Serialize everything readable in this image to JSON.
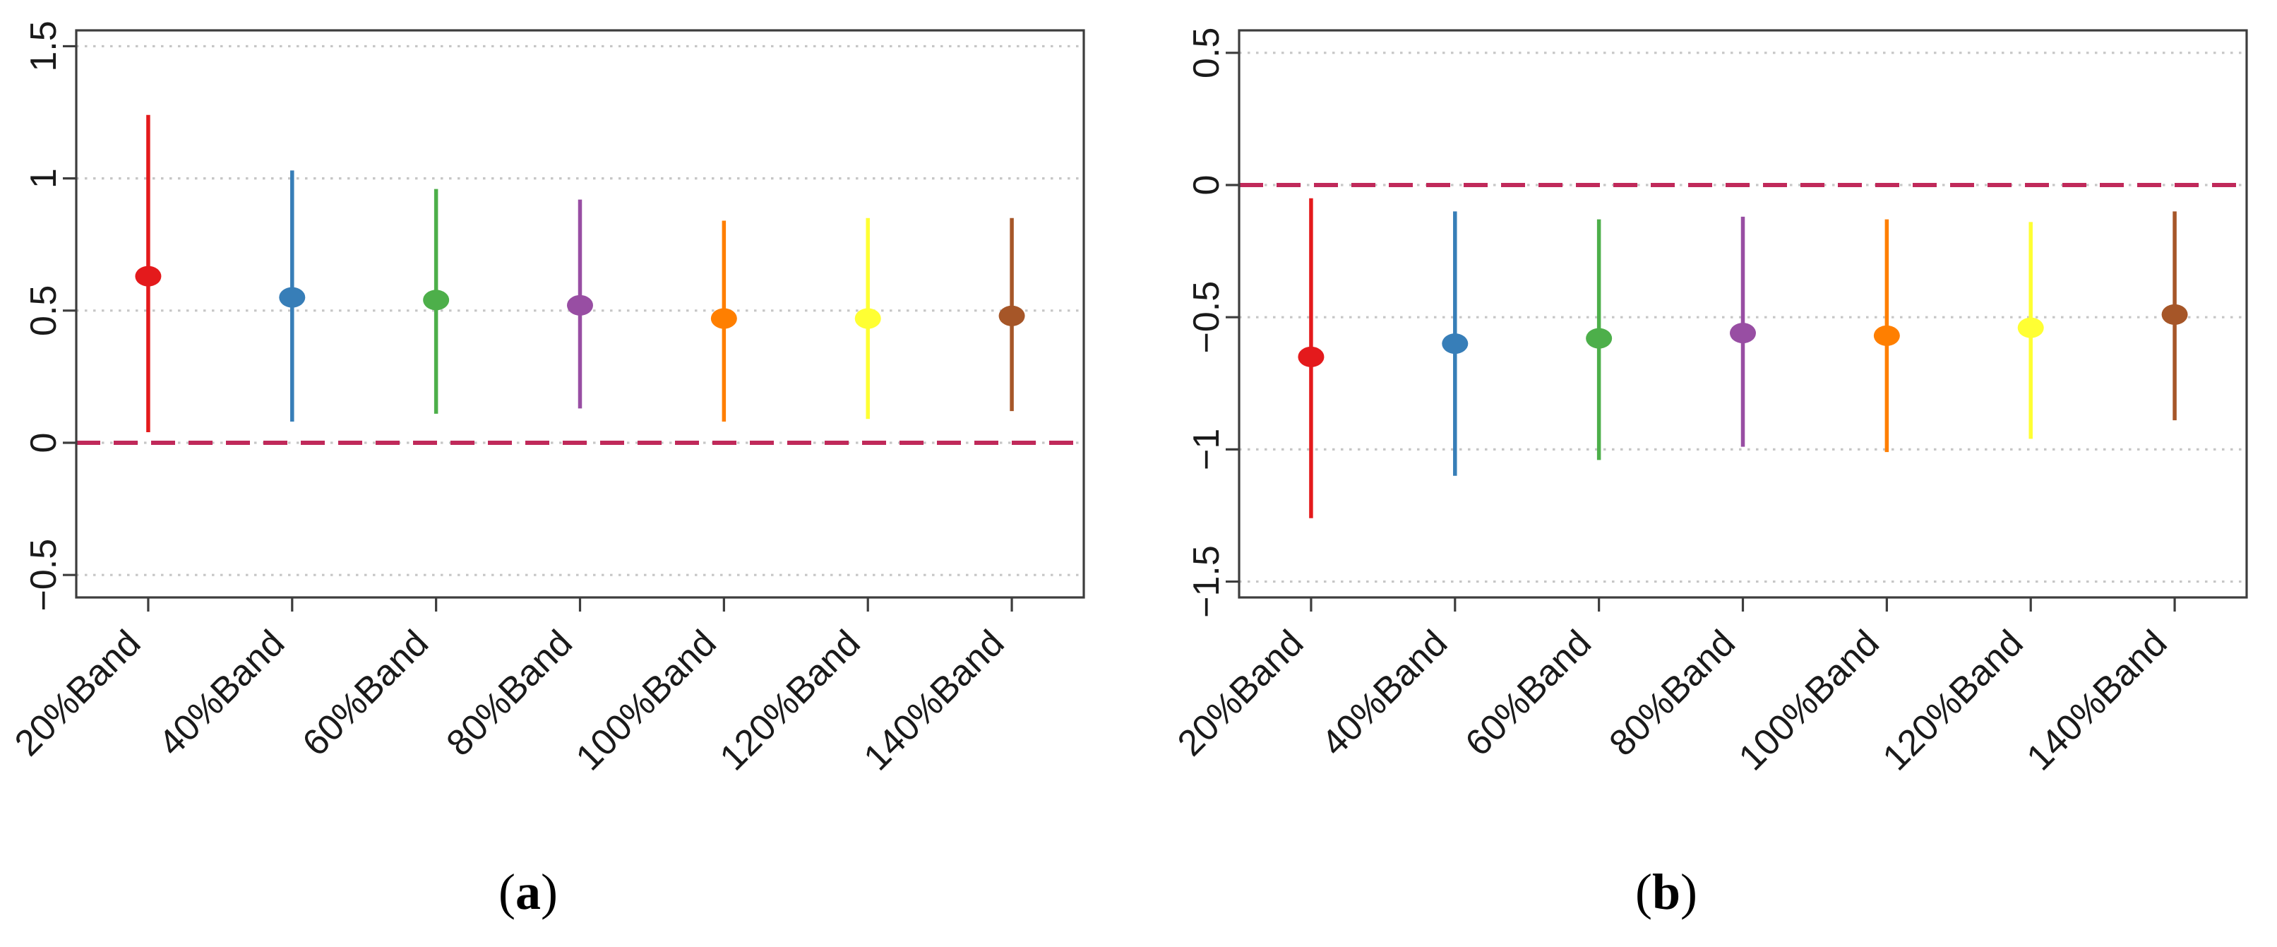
{
  "page": {
    "background_color": "#ffffff",
    "description": "Two-panel coefficient plot with point estimates and vertical confidence intervals across seven bandwidth choices"
  },
  "chart_data": [
    {
      "id": "a",
      "type": "scatter",
      "error_bars": true,
      "caption_open": "(",
      "caption_letter": "a",
      "caption_close": ")",
      "title": "",
      "xlabel": "",
      "ylabel": "",
      "categories": [
        "20%Band",
        "40%Band",
        "60%Band",
        "80%Band",
        "100%Band",
        "120%Band",
        "140%Band"
      ],
      "centers": [
        0.63,
        0.55,
        0.54,
        0.52,
        0.47,
        0.47,
        0.48
      ],
      "ci_low": [
        0.04,
        0.08,
        0.11,
        0.13,
        0.08,
        0.09,
        0.12
      ],
      "ci_high": [
        1.24,
        1.03,
        0.96,
        0.92,
        0.84,
        0.85,
        0.85
      ],
      "colors": [
        "#E41A1C",
        "#377EB8",
        "#4DAF4A",
        "#984EA3",
        "#FF7F00",
        "#FFFF33",
        "#A65628"
      ],
      "ylim": [
        -0.585,
        1.56
      ],
      "yticks": [
        -0.5,
        0,
        0.5,
        1,
        1.5
      ],
      "ytick_labels": [
        "−0.5",
        "0",
        "0.5",
        "1",
        "1.5"
      ],
      "grid": "dotted-horizontal-at-yticks",
      "refline": 0,
      "refline_style": "dashed",
      "refline_color": "#C0295A",
      "legend": "none"
    },
    {
      "id": "b",
      "type": "scatter",
      "error_bars": true,
      "caption_open": "(",
      "caption_letter": "b",
      "caption_close": ")",
      "title": "",
      "xlabel": "",
      "ylabel": "",
      "categories": [
        "20%Band",
        "40%Band",
        "60%Band",
        "80%Band",
        "100%Band",
        "120%Band",
        "140%Band"
      ],
      "centers": [
        -0.65,
        -0.6,
        -0.58,
        -0.56,
        -0.57,
        -0.54,
        -0.49
      ],
      "ci_low": [
        -1.26,
        -1.1,
        -1.04,
        -0.99,
        -1.01,
        -0.96,
        -0.89
      ],
      "ci_high": [
        -0.05,
        -0.1,
        -0.13,
        -0.12,
        -0.13,
        -0.14,
        -0.1
      ],
      "colors": [
        "#E41A1C",
        "#377EB8",
        "#4DAF4A",
        "#984EA3",
        "#FF7F00",
        "#FFFF33",
        "#A65628"
      ],
      "ylim": [
        -1.56,
        0.585
      ],
      "yticks": [
        -1.5,
        -1,
        -0.5,
        0,
        0.5
      ],
      "ytick_labels": [
        "−1.5",
        "−1",
        "−0.5",
        "0",
        "0.5"
      ],
      "grid": "dotted-horizontal-at-yticks",
      "refline": 0,
      "refline_style": "dashed",
      "refline_color": "#C0295A",
      "legend": "none"
    }
  ]
}
